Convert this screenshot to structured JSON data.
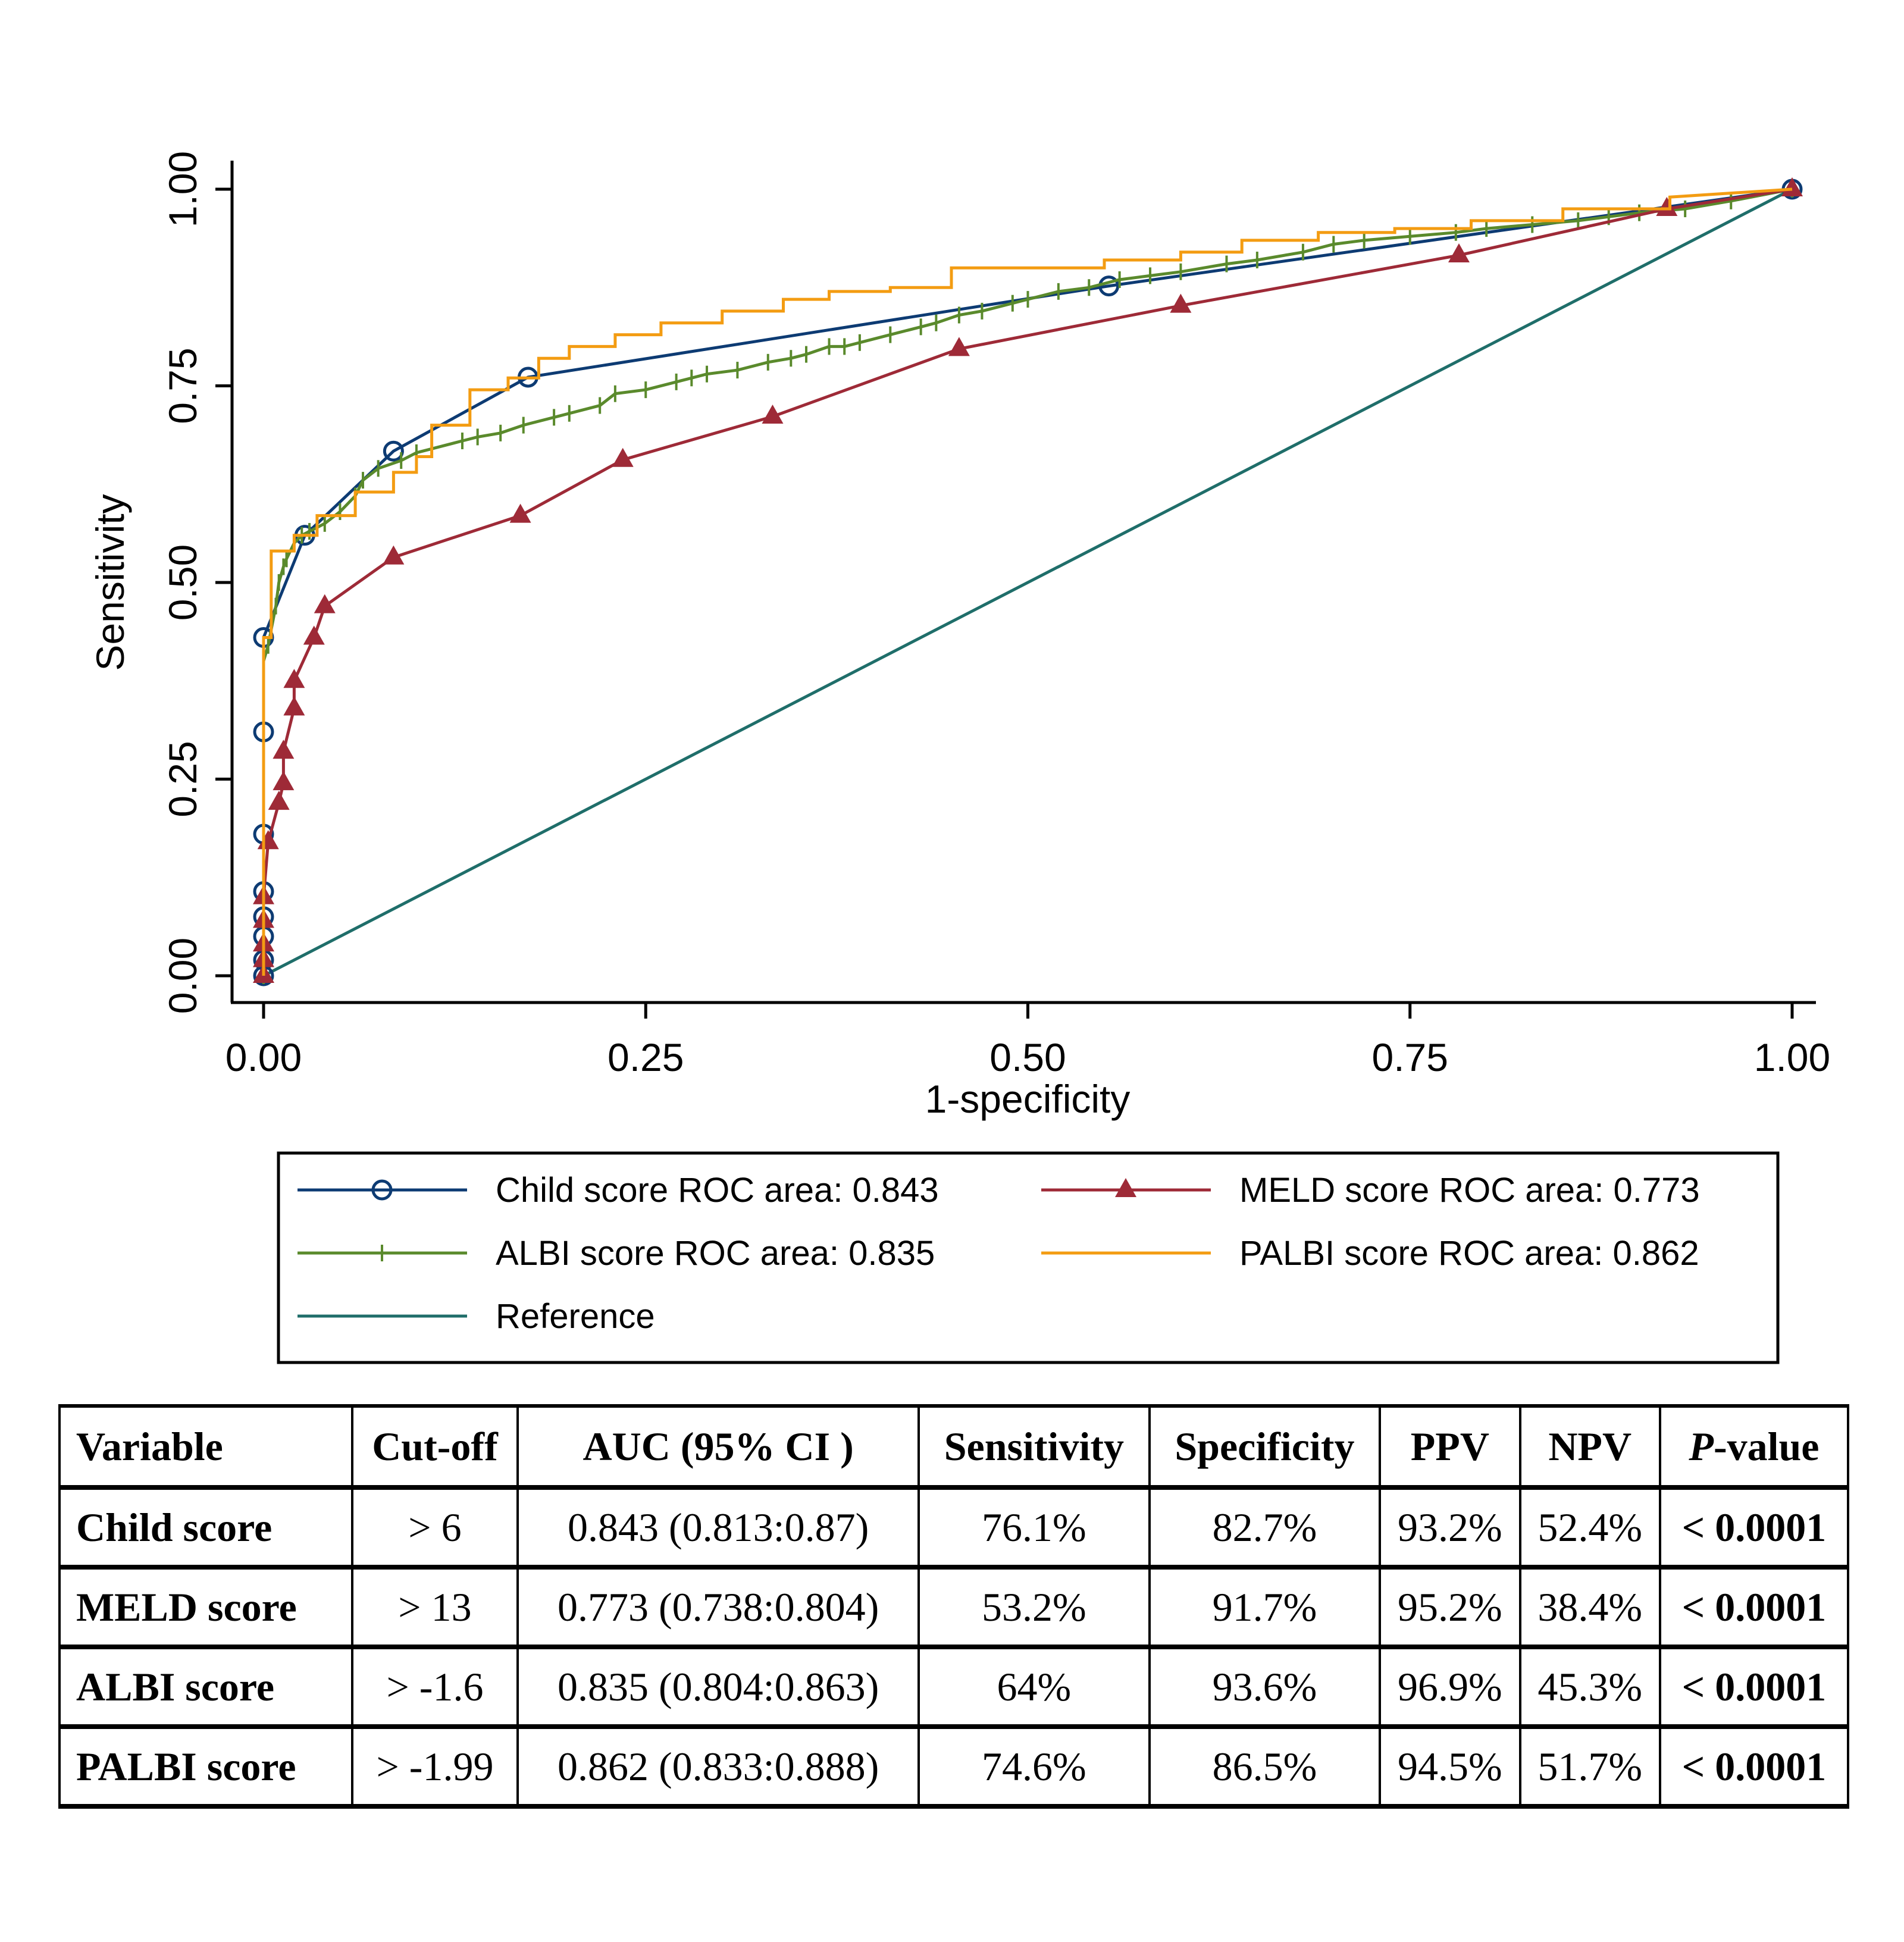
{
  "chart_data": {
    "type": "line",
    "title": "",
    "xlabel": "1-specificity",
    "ylabel": "Sensitivity",
    "xlim": [
      0,
      1
    ],
    "ylim": [
      0,
      1
    ],
    "xticks": [
      0,
      0.25,
      0.5,
      0.75,
      1
    ],
    "yticks": [
      0,
      0.25,
      0.5,
      0.75,
      1
    ],
    "xtick_labels": [
      "0.00",
      "0.25",
      "0.50",
      "0.75",
      "1.00"
    ],
    "ytick_labels": [
      "0.00",
      "0.25",
      "0.50",
      "0.75",
      "1.00"
    ],
    "grid": false,
    "legend_position": "bottom",
    "series": [
      {
        "name": "Child score ROC area: 0.843",
        "color": "#0d3b73",
        "marker": "circle",
        "step": false,
        "x": [
          0,
          0,
          0,
          0,
          0,
          0,
          0,
          0,
          0.027,
          0.085,
          0.173,
          0.553,
          1
        ],
        "y": [
          0,
          0.02,
          0.05,
          0.075,
          0.107,
          0.18,
          0.31,
          0.43,
          0.56,
          0.667,
          0.761,
          0.877,
          1
        ]
      },
      {
        "name": "MELD score ROC area: 0.773",
        "color": "#9e2a37",
        "marker": "triangle",
        "step": false,
        "x": [
          0,
          0,
          0,
          0,
          0,
          0.003,
          0.01,
          0.013,
          0.013,
          0.02,
          0.02,
          0.033,
          0.04,
          0.085,
          0.168,
          0.235,
          0.333,
          0.455,
          0.6,
          0.782,
          0.918,
          1
        ],
        "y": [
          0,
          0.02,
          0.04,
          0.07,
          0.1,
          0.17,
          0.22,
          0.245,
          0.285,
          0.34,
          0.375,
          0.43,
          0.47,
          0.532,
          0.585,
          0.656,
          0.711,
          0.797,
          0.852,
          0.916,
          0.975,
          1
        ]
      },
      {
        "name": "ALBI score ROC area: 0.835",
        "color": "#5a8a2c",
        "marker": "plus",
        "step": false,
        "x": [
          0,
          0,
          0,
          0,
          0.003,
          0.005,
          0.008,
          0.01,
          0.013,
          0.015,
          0.02,
          0.025,
          0.03,
          0.04,
          0.05,
          0.06,
          0.065,
          0.075,
          0.09,
          0.1,
          0.11,
          0.13,
          0.14,
          0.155,
          0.17,
          0.19,
          0.2,
          0.22,
          0.23,
          0.25,
          0.27,
          0.28,
          0.29,
          0.31,
          0.33,
          0.345,
          0.355,
          0.37,
          0.38,
          0.39,
          0.41,
          0.43,
          0.44,
          0.455,
          0.47,
          0.49,
          0.5,
          0.52,
          0.54,
          0.56,
          0.58,
          0.6,
          0.63,
          0.65,
          0.68,
          0.7,
          0.72,
          0.75,
          0.78,
          0.8,
          0.83,
          0.86,
          0.88,
          0.9,
          0.93,
          0.96,
          1
        ],
        "y": [
          0,
          0.1,
          0.25,
          0.4,
          0.42,
          0.44,
          0.47,
          0.5,
          0.52,
          0.53,
          0.55,
          0.56,
          0.565,
          0.575,
          0.59,
          0.61,
          0.63,
          0.645,
          0.655,
          0.665,
          0.67,
          0.68,
          0.685,
          0.69,
          0.7,
          0.71,
          0.715,
          0.725,
          0.74,
          0.745,
          0.755,
          0.76,
          0.765,
          0.77,
          0.78,
          0.785,
          0.79,
          0.8,
          0.8,
          0.805,
          0.815,
          0.825,
          0.83,
          0.84,
          0.845,
          0.855,
          0.86,
          0.87,
          0.875,
          0.885,
          0.89,
          0.895,
          0.905,
          0.91,
          0.92,
          0.93,
          0.935,
          0.94,
          0.945,
          0.95,
          0.955,
          0.96,
          0.965,
          0.97,
          0.975,
          0.985,
          1
        ]
      },
      {
        "name": "PALBI score ROC area: 0.862",
        "color": "#f39c12",
        "marker": "none",
        "step": true,
        "x": [
          0,
          0,
          0.005,
          0.005,
          0.02,
          0.02,
          0.035,
          0.035,
          0.06,
          0.06,
          0.085,
          0.085,
          0.1,
          0.1,
          0.11,
          0.11,
          0.135,
          0.135,
          0.16,
          0.16,
          0.18,
          0.18,
          0.2,
          0.2,
          0.23,
          0.23,
          0.26,
          0.26,
          0.3,
          0.3,
          0.34,
          0.34,
          0.37,
          0.37,
          0.41,
          0.41,
          0.45,
          0.45,
          0.48,
          0.48,
          0.55,
          0.55,
          0.6,
          0.6,
          0.64,
          0.64,
          0.69,
          0.69,
          0.74,
          0.74,
          0.79,
          0.79,
          0.85,
          0.85,
          0.92,
          0.92,
          1
        ],
        "y": [
          0,
          0.43,
          0.43,
          0.54,
          0.54,
          0.56,
          0.56,
          0.585,
          0.585,
          0.615,
          0.615,
          0.64,
          0.64,
          0.66,
          0.66,
          0.7,
          0.7,
          0.745,
          0.745,
          0.76,
          0.76,
          0.785,
          0.785,
          0.8,
          0.8,
          0.815,
          0.815,
          0.83,
          0.83,
          0.845,
          0.845,
          0.86,
          0.86,
          0.87,
          0.87,
          0.875,
          0.875,
          0.9,
          0.9,
          0.9,
          0.9,
          0.91,
          0.91,
          0.92,
          0.92,
          0.935,
          0.935,
          0.945,
          0.945,
          0.95,
          0.95,
          0.96,
          0.96,
          0.975,
          0.975,
          0.99,
          1
        ]
      },
      {
        "name": "Reference",
        "color": "#1f6e6a",
        "marker": "none",
        "step": false,
        "x": [
          0,
          1
        ],
        "y": [
          0,
          1
        ]
      }
    ],
    "legend": [
      {
        "label": "Child score ROC area: 0.843",
        "color": "#0d3b73",
        "marker": "circle"
      },
      {
        "label": "MELD score ROC area: 0.773",
        "color": "#9e2a37",
        "marker": "triangle"
      },
      {
        "label": "ALBI score ROC area: 0.835",
        "color": "#5a8a2c",
        "marker": "plus"
      },
      {
        "label": "PALBI score ROC area: 0.862",
        "color": "#f39c12",
        "marker": "none"
      },
      {
        "label": "Reference",
        "color": "#1f6e6a",
        "marker": "none"
      }
    ]
  },
  "table": {
    "headers": [
      "Variable",
      "Cut-off",
      "AUC (95% CI )",
      "Sensitivity",
      "Specificity",
      "PPV",
      "NPV",
      "P",
      "-value"
    ],
    "rows": [
      {
        "variable": "Child score",
        "cutoff": "> 6",
        "auc": "0.843 (0.813:0.87)",
        "sensitivity": "76.1%",
        "specificity": "82.7%",
        "ppv": "93.2%",
        "npv": "52.4%",
        "p": "< 0.0001"
      },
      {
        "variable": "MELD score",
        "cutoff": "> 13",
        "auc": "0.773 (0.738:0.804)",
        "sensitivity": "53.2%",
        "specificity": "91.7%",
        "ppv": "95.2%",
        "npv": "38.4%",
        "p": "< 0.0001"
      },
      {
        "variable": "ALBI score",
        "cutoff": "> -1.6",
        "auc": "0.835 (0.804:0.863)",
        "sensitivity": "64%",
        "specificity": "93.6%",
        "ppv": "96.9%",
        "npv": "45.3%",
        "p": "< 0.0001"
      },
      {
        "variable": "PALBI score",
        "cutoff": "> -1.99",
        "auc": "0.862 (0.833:0.888)",
        "sensitivity": "74.6%",
        "specificity": "86.5%",
        "ppv": "94.5%",
        "npv": "51.7%",
        "p": "< 0.0001"
      }
    ]
  }
}
